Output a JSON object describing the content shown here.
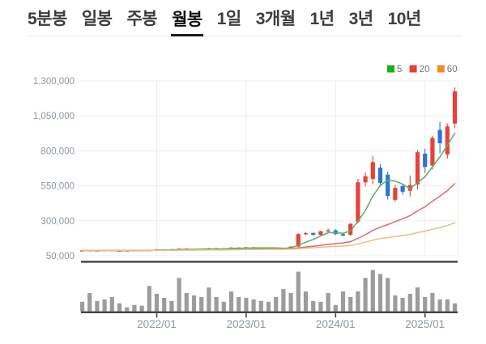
{
  "tabs": {
    "items": [
      {
        "id": "5min",
        "label": "5분봉",
        "active": false
      },
      {
        "id": "daily",
        "label": "일봉",
        "active": false
      },
      {
        "id": "weekly",
        "label": "주봉",
        "active": false
      },
      {
        "id": "monthly",
        "label": "월봉",
        "active": true
      },
      {
        "id": "1day",
        "label": "1일",
        "active": false
      },
      {
        "id": "3month",
        "label": "3개월",
        "active": false
      },
      {
        "id": "1year",
        "label": "1년",
        "active": false
      },
      {
        "id": "3year",
        "label": "3년",
        "active": false
      },
      {
        "id": "10year",
        "label": "10년",
        "active": false
      }
    ]
  },
  "chart_data": {
    "type": "candlestick",
    "panels": [
      "price",
      "volume"
    ],
    "legend": [
      {
        "id": "ma5",
        "label": "5",
        "color": "#19b219"
      },
      {
        "id": "ma20",
        "label": "20",
        "color": "#ee3f35"
      },
      {
        "id": "ma60",
        "label": "60",
        "color": "#ee8d27"
      }
    ],
    "y_axis": {
      "range": [
        50000,
        1300000
      ],
      "tick_values": [
        1300000,
        1050000,
        800000,
        550000,
        300000,
        50000
      ],
      "tick_labels": [
        "1,300,000",
        "1,050,000",
        "800,000",
        "550,000",
        "300,000",
        "50,000"
      ]
    },
    "x_axis": {
      "ticks": [
        {
          "label": "2022/01",
          "index": 10
        },
        {
          "label": "2023/01",
          "index": 22
        },
        {
          "label": "2024/01",
          "index": 34
        },
        {
          "label": "2025/01",
          "index": 46
        }
      ]
    },
    "grid": true,
    "moving_averages": [
      {
        "period": 5,
        "color": "#55b263"
      },
      {
        "period": 20,
        "color": "#e2686b"
      },
      {
        "period": 60,
        "color": "#e8c084"
      }
    ],
    "colors": {
      "up": "#e8413c",
      "down": "#2f74d0",
      "volume": "#9c9c9c",
      "grid": "#ebedf0",
      "axis_text": "#8d97a3",
      "axis_line": "#3f4347"
    },
    "candles_ohlc": [
      [
        84000,
        91000,
        81000,
        89000
      ],
      [
        89000,
        92000,
        83000,
        85000
      ],
      [
        85000,
        90000,
        83000,
        88000
      ],
      [
        88000,
        93000,
        86000,
        91000
      ],
      [
        91000,
        93000,
        85000,
        87000
      ],
      [
        87000,
        90000,
        82000,
        84000
      ],
      [
        84000,
        90000,
        82000,
        88000
      ],
      [
        88000,
        93000,
        86000,
        91000
      ],
      [
        91000,
        93000,
        84000,
        86000
      ],
      [
        86000,
        94000,
        85000,
        92000
      ],
      [
        92000,
        98000,
        90000,
        96000
      ],
      [
        96000,
        98000,
        89000,
        91000
      ],
      [
        91000,
        99000,
        89000,
        97000
      ],
      [
        97000,
        104000,
        95000,
        101000
      ],
      [
        101000,
        103000,
        95000,
        97000
      ],
      [
        97000,
        100000,
        90000,
        93000
      ],
      [
        93000,
        101000,
        91000,
        99000
      ],
      [
        99000,
        106000,
        97000,
        104000
      ],
      [
        104000,
        106000,
        96000,
        98000
      ],
      [
        98000,
        105000,
        96000,
        103000
      ],
      [
        103000,
        111000,
        101000,
        109000
      ],
      [
        109000,
        111000,
        102000,
        104000
      ],
      [
        104000,
        113000,
        102000,
        111000
      ],
      [
        111000,
        113000,
        104000,
        106000
      ],
      [
        106000,
        109000,
        100000,
        102000
      ],
      [
        102000,
        110000,
        100000,
        108000
      ],
      [
        108000,
        110000,
        102000,
        104000
      ],
      [
        104000,
        107000,
        98000,
        100000
      ],
      [
        100000,
        118000,
        98000,
        116000
      ],
      [
        116000,
        212000,
        114000,
        205000
      ],
      [
        205000,
        220000,
        196000,
        212000
      ],
      [
        212000,
        218000,
        192000,
        200000
      ],
      [
        200000,
        230000,
        196000,
        225000
      ],
      [
        225000,
        245000,
        216000,
        232000
      ],
      [
        232000,
        240000,
        198000,
        205000
      ],
      [
        205000,
        212000,
        188000,
        195000
      ],
      [
        200000,
        285000,
        192000,
        278000
      ],
      [
        295000,
        600000,
        282000,
        575000
      ],
      [
        575000,
        645000,
        545000,
        618000
      ],
      [
        600000,
        762000,
        562000,
        720000
      ],
      [
        680000,
        705000,
        545000,
        570000
      ],
      [
        630000,
        652000,
        452000,
        478000
      ],
      [
        450000,
        558000,
        436000,
        535000
      ],
      [
        548000,
        562000,
        488000,
        508000
      ],
      [
        515000,
        625000,
        475000,
        556000
      ],
      [
        560000,
        806000,
        526000,
        790000
      ],
      [
        780000,
        815000,
        642000,
        685000
      ],
      [
        695000,
        908000,
        668000,
        893000
      ],
      [
        950000,
        1008000,
        782000,
        855000
      ],
      [
        775000,
        996000,
        744000,
        975000
      ],
      [
        995000,
        1253000,
        962000,
        1226000
      ]
    ],
    "volumes": [
      12,
      23,
      13,
      15,
      18,
      10,
      5,
      8,
      7,
      32,
      22,
      17,
      13,
      42,
      23,
      20,
      18,
      30,
      18,
      12,
      25,
      18,
      17,
      15,
      13,
      12,
      18,
      28,
      23,
      50,
      25,
      13,
      12,
      23,
      8,
      25,
      18,
      25,
      42,
      52,
      47,
      42,
      20,
      17,
      22,
      30,
      18,
      23,
      15,
      15,
      10
    ]
  }
}
